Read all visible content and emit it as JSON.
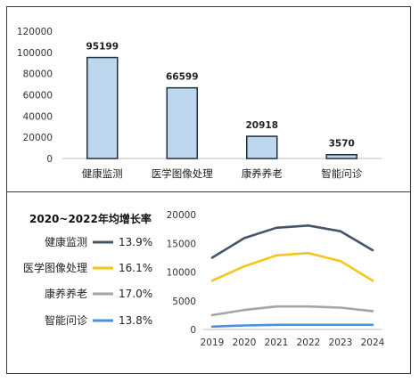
{
  "chart_data": [
    {
      "type": "bar",
      "categories": [
        "健康监测",
        "医学图像处理",
        "康养养老",
        "智能问诊"
      ],
      "values": [
        95199,
        66599,
        20918,
        3570
      ],
      "data_labels": [
        "95199",
        "66599",
        "20918",
        "3570"
      ],
      "ylim": [
        0,
        120000
      ],
      "yticks": [
        0,
        20000,
        40000,
        60000,
        80000,
        100000,
        120000
      ],
      "grid": false,
      "colors": {
        "bar_fill": "#bdd7ee",
        "bar_stroke": "#1f2d3d"
      }
    },
    {
      "type": "line",
      "x": [
        2019,
        2020,
        2021,
        2022,
        2023,
        2024
      ],
      "series": [
        {
          "name": "健康监测",
          "values": [
            12500,
            15900,
            17700,
            18100,
            17100,
            13800
          ],
          "color": "#44546a"
        },
        {
          "name": "医学图像处理",
          "values": [
            8500,
            11000,
            12900,
            13300,
            11900,
            8500
          ],
          "color": "#f5c518"
        },
        {
          "name": "康养养老",
          "values": [
            2500,
            3400,
            4000,
            4000,
            3800,
            3200
          ],
          "color": "#a5a5a5"
        },
        {
          "name": "智能问诊",
          "values": [
            500,
            700,
            800,
            800,
            800,
            800
          ],
          "color": "#4a90e2"
        }
      ],
      "ylim": [
        0,
        20000
      ],
      "yticks": [
        0,
        5000,
        10000,
        15000,
        20000
      ],
      "grid": false,
      "legend_placement": "left",
      "legend": {
        "title": "2020~2022年均增长率",
        "rates": [
          "13.9%",
          "16.1%",
          "17.0%",
          "13.8%"
        ]
      }
    }
  ]
}
